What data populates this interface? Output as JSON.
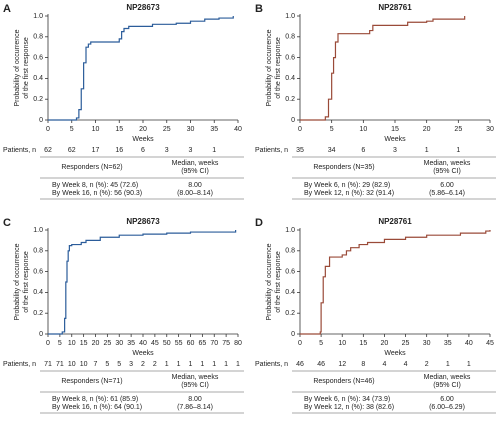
{
  "chart_data": [
    {
      "type": "step",
      "panel": "A",
      "title": "NP28673",
      "xlabel": "Weeks",
      "ylabel": [
        "Probability of occurrence",
        "of the first response"
      ],
      "color": "#2b5c9a",
      "xlim": [
        0,
        40
      ],
      "ylim": [
        0,
        1
      ],
      "xticks": [
        0,
        5,
        10,
        15,
        20,
        25,
        30,
        35,
        40
      ],
      "yticks": [
        0,
        0.2,
        0.4,
        0.6,
        0.8,
        {
          "value": 1,
          "label": "1.0"
        }
      ],
      "x": [
        0,
        6,
        6.5,
        7,
        7.5,
        8,
        8.5,
        9,
        15,
        15.5,
        16,
        17,
        22,
        27,
        30,
        33,
        36,
        39
      ],
      "y": [
        0,
        0.02,
        0.1,
        0.3,
        0.55,
        0.7,
        0.73,
        0.75,
        0.78,
        0.85,
        0.88,
        0.9,
        0.92,
        0.93,
        0.95,
        0.97,
        0.98,
        1
      ],
      "at_risk_label": "Patients, n",
      "at_risk": [
        62,
        62,
        17,
        16,
        6,
        3,
        3,
        1
      ],
      "table": {
        "responders": "Responders (N=62)",
        "median_header": [
          "Median, weeks",
          "(95% CI)"
        ],
        "rows": [
          "By Week 8, n (%): 45 (72.6)",
          "By Week 16, n (%): 56 (90.3)"
        ],
        "median": "8.00",
        "ci": "(8.00–8.14)"
      }
    },
    {
      "type": "step",
      "panel": "B",
      "title": "NP28761",
      "xlabel": "Weeks",
      "ylabel": [
        "Probability of occurrence",
        "of the first response"
      ],
      "color": "#9a4a38",
      "xlim": [
        0,
        30
      ],
      "ylim": [
        0,
        1
      ],
      "xticks": [
        0,
        5,
        10,
        15,
        20,
        25,
        30
      ],
      "yticks": [
        0,
        0.2,
        0.4,
        0.6,
        0.8,
        {
          "value": 1,
          "label": "1.0"
        }
      ],
      "x": [
        0,
        4,
        4.5,
        5,
        5.3,
        5.6,
        6,
        11,
        11.5,
        17,
        20,
        21,
        26
      ],
      "y": [
        0,
        0.03,
        0.2,
        0.45,
        0.6,
        0.75,
        0.83,
        0.86,
        0.91,
        0.94,
        0.95,
        0.97,
        1
      ],
      "at_risk_label": "Patients, n",
      "at_risk": [
        35,
        34,
        6,
        3,
        1,
        1
      ],
      "table": {
        "responders": "Responders (N=35)",
        "median_header": [
          "Median, weeks",
          "(95% CI)"
        ],
        "rows": [
          "By Week 6, n (%): 29 (82.9)",
          "By Week 12, n (%): 32 (91.4)"
        ],
        "median": "6.00",
        "ci": "(5.86–6.14)"
      }
    },
    {
      "type": "step",
      "panel": "C",
      "title": "NP28673",
      "xlabel": "Weeks",
      "ylabel": [
        "Probability of occurrence",
        "of the first response"
      ],
      "color": "#2b5c9a",
      "xlim": [
        0,
        80
      ],
      "ylim": [
        0,
        1
      ],
      "xticks": [
        0,
        5,
        10,
        15,
        20,
        25,
        30,
        35,
        40,
        45,
        50,
        55,
        60,
        65,
        70,
        75,
        80
      ],
      "yticks": [
        0,
        0.2,
        0.4,
        0.6,
        0.8,
        {
          "value": 1,
          "label": "1.0"
        }
      ],
      "x": [
        0,
        6,
        7,
        7.5,
        8,
        8.5,
        9,
        10,
        14,
        16,
        22,
        30,
        40,
        50,
        60,
        79
      ],
      "y": [
        0,
        0.02,
        0.15,
        0.5,
        0.7,
        0.8,
        0.85,
        0.86,
        0.88,
        0.9,
        0.93,
        0.95,
        0.96,
        0.97,
        0.98,
        1
      ],
      "at_risk_label": "Patients, n",
      "at_risk": [
        71,
        71,
        10,
        10,
        7,
        5,
        5,
        3,
        2,
        2,
        1,
        1,
        1,
        1,
        1,
        1,
        1
      ],
      "table": {
        "responders": "Responders (N=71)",
        "median_header": [
          "Median, weeks",
          "(95% CI)"
        ],
        "rows": [
          "By Week 8, n (%): 61 (85.9)",
          "By Week 16, n (%): 64 (90.1)"
        ],
        "median": "8.00",
        "ci": "(7.86–8.14)"
      }
    },
    {
      "type": "step",
      "panel": "D",
      "title": "NP28761",
      "xlabel": "Weeks",
      "ylabel": [
        "Probability of occurrence",
        "of the first response"
      ],
      "color": "#9a4a38",
      "xlim": [
        0,
        45
      ],
      "ylim": [
        0,
        1
      ],
      "xticks": [
        0,
        5,
        10,
        15,
        20,
        25,
        30,
        35,
        40,
        45
      ],
      "yticks": [
        0,
        0.2,
        0.4,
        0.6,
        0.8,
        {
          "value": 1,
          "label": "1.0"
        }
      ],
      "x": [
        0,
        4.8,
        5,
        5.5,
        6,
        7,
        10,
        11,
        12,
        14,
        16,
        20,
        25,
        30,
        38,
        44,
        45
      ],
      "y": [
        0,
        0.02,
        0.3,
        0.55,
        0.65,
        0.74,
        0.76,
        0.8,
        0.83,
        0.86,
        0.88,
        0.91,
        0.93,
        0.95,
        0.97,
        0.99,
        1
      ],
      "at_risk_label": "Patients, n",
      "at_risk": [
        46,
        46,
        12,
        8,
        4,
        4,
        2,
        1,
        1
      ],
      "table": {
        "responders": "Responders (N=46)",
        "median_header": [
          "Median, weeks",
          "(95% CI)"
        ],
        "rows": [
          "By Week 6, n (%): 34 (73.9)",
          "By Week 12, n (%): 38 (82.6)"
        ],
        "median": "6.00",
        "ci": "(6.00–6.29)"
      }
    }
  ]
}
